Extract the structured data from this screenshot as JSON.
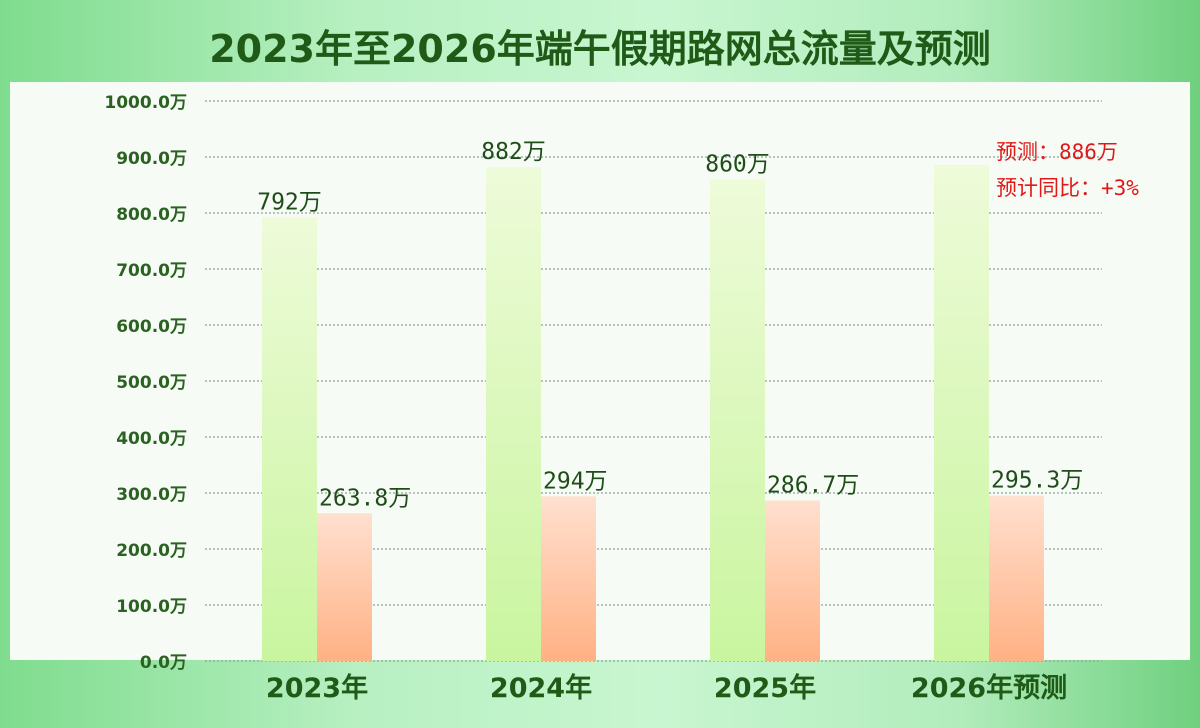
{
  "title": "2023年至2026年端午假期路网总流量及预测",
  "chart_data": {
    "type": "bar",
    "title": "2023年至2026年端午假期路网总流量及预测",
    "categories": [
      "2023年",
      "2024年",
      "2025年",
      "2026年预测"
    ],
    "series": [
      {
        "values": [
          792,
          882,
          860,
          886
        ],
        "labels": [
          "792万",
          "882万",
          "860万",
          ""
        ]
      },
      {
        "values": [
          263.8,
          294,
          286.7,
          295.3
        ],
        "labels": [
          "263.8万",
          "294万",
          "286.7万",
          "295.3万"
        ]
      }
    ],
    "ylim": [
      0,
      1000
    ],
    "y_ticks": [
      "0.0万",
      "100.0万",
      "200.0万",
      "300.0万",
      "400.0万",
      "500.0万",
      "600.0万",
      "700.0万",
      "800.0万",
      "900.0万",
      "1000.0万"
    ],
    "grid": true,
    "annotations": [
      "预测：886万",
      "预计同比：+3%"
    ],
    "highlight_category_color": "#e01818",
    "series_colors": {
      "tall_top": "#eefbd9",
      "tall_bottom": "#c9f59f",
      "short_top": "#ffe0cf",
      "short_bottom": "#ffb184"
    }
  }
}
